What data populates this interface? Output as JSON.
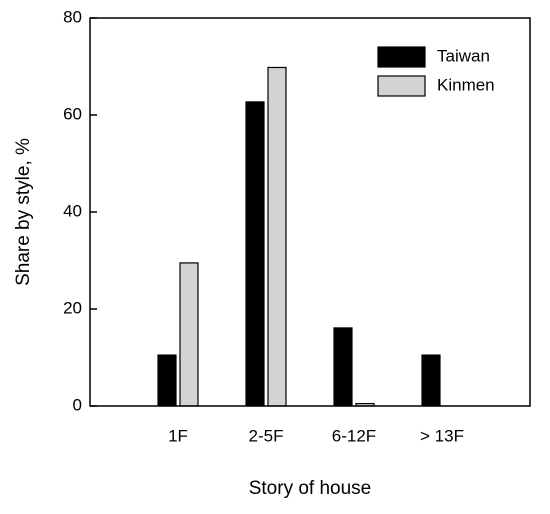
{
  "chart_data": {
    "type": "bar",
    "x_label": "Story of house",
    "y_label": "Share by style, %",
    "categories": [
      "1F",
      "2-5F",
      "6-12F",
      "> 13F"
    ],
    "series": [
      {
        "name": "Taiwan",
        "color": "#000000",
        "values": [
          10.5,
          62.7,
          16.1,
          10.5
        ]
      },
      {
        "name": "Kinmen",
        "color": "#d3d3d3",
        "values": [
          29.5,
          69.8,
          0.5,
          0
        ]
      }
    ],
    "ylim": [
      0,
      80
    ],
    "yticks": [
      0,
      20,
      40,
      60,
      80
    ],
    "legend": "upper right"
  }
}
